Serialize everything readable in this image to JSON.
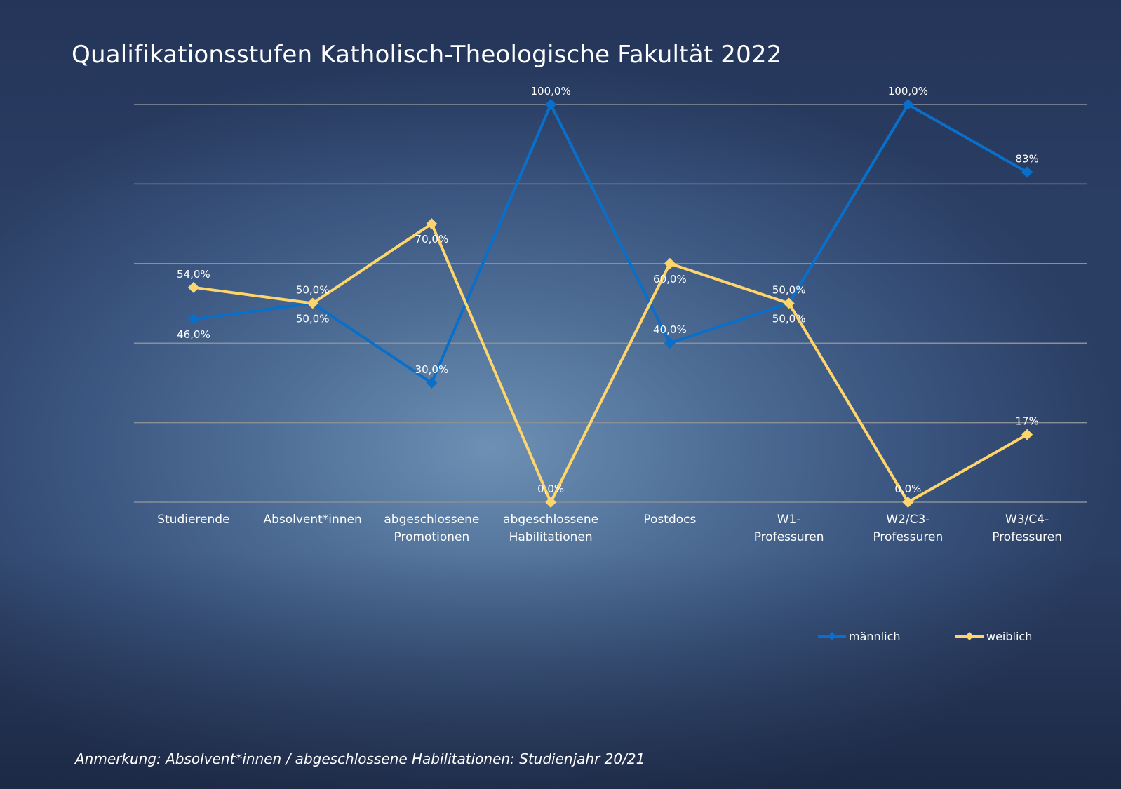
{
  "chart_data": {
    "type": "line",
    "title": "Qualifikationsstufen Katholisch-Theologische Fakultät 2022",
    "note": "Anmerkung: Absolvent*innen / abgeschlossene Habilitationen: Studienjahr 20/21",
    "categories": [
      [
        "Studierende"
      ],
      [
        "Absolvent*innen"
      ],
      [
        "abgeschlossene",
        "Promotionen"
      ],
      [
        "abgeschlossene",
        "Habilitationen"
      ],
      [
        "Postdocs"
      ],
      [
        "W1-",
        "Professuren"
      ],
      [
        "W2/C3-",
        "Professuren"
      ],
      [
        "W3/C4-",
        "Professuren"
      ]
    ],
    "series": [
      {
        "name": "männlich",
        "color": "#0a6fc8",
        "values": [
          46,
          50,
          30,
          100,
          40,
          50,
          100,
          83
        ],
        "labels": [
          "46,0%",
          "50,0%",
          "30,0%",
          "100,0%",
          "40,0%",
          "50,0%",
          "100,0%",
          "83%"
        ]
      },
      {
        "name": "weiblich",
        "color": "#fdd56b",
        "values": [
          54,
          50,
          70,
          0,
          60,
          50,
          0,
          17
        ],
        "labels": [
          "54,0%",
          "50,0%",
          "70,0%",
          "0,0%",
          "60,0%",
          "50,0%",
          "0,0%",
          "17%"
        ]
      }
    ],
    "ylim": [
      0,
      100
    ],
    "grid": true,
    "y_tick_labels_shown": false,
    "legend": "bottom-right",
    "marker": "diamond"
  }
}
